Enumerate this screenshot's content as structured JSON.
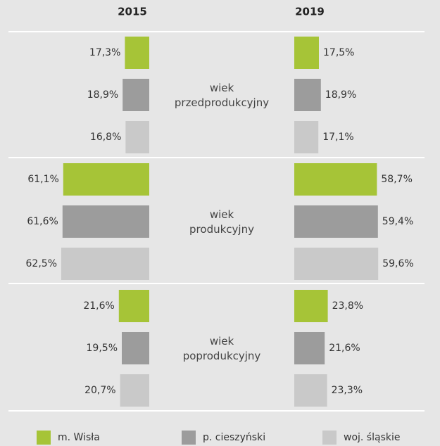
{
  "chart_data": {
    "type": "butterfly",
    "panels": [
      "2015",
      "2019"
    ],
    "groups": [
      "wiek przedprodukcyjny",
      "wiek produkcyjny",
      "wiek poprodukcyjny"
    ],
    "series": [
      {
        "name": "m. Wisła",
        "color": "#a6c437",
        "values": [
          [
            17.3,
            61.1,
            21.6
          ],
          [
            17.5,
            58.7,
            23.8
          ]
        ],
        "value_labels": [
          [
            "17,3%",
            "61,1%",
            "21,6%"
          ],
          [
            "17,5%",
            "58,7%",
            "23,8%"
          ]
        ]
      },
      {
        "name": "p. cieszyński",
        "color": "#9c9c9c",
        "values": [
          [
            18.9,
            61.6,
            19.5
          ],
          [
            18.9,
            59.4,
            21.6
          ]
        ],
        "value_labels": [
          [
            "18,9%",
            "61,6%",
            "19,5%"
          ],
          [
            "18,9%",
            "59,4%",
            "21,6%"
          ]
        ]
      },
      {
        "name": "woj. śląskie",
        "color": "#c9c9c9",
        "values": [
          [
            16.8,
            62.5,
            20.7
          ],
          [
            17.1,
            59.6,
            23.3
          ]
        ],
        "value_labels": [
          [
            "16,8%",
            "62,5%",
            "20,7%"
          ],
          [
            "17,1%",
            "59,6%",
            "23,3%"
          ]
        ]
      }
    ]
  }
}
